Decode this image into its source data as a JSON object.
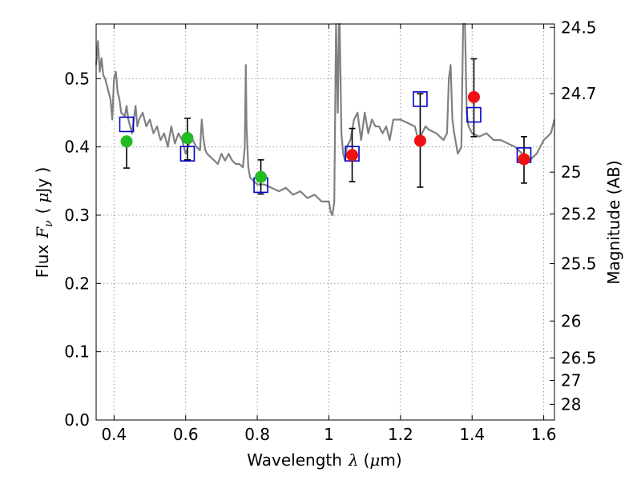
{
  "chart_data": {
    "type": "scatter",
    "xlabel": "Wavelength",
    "xlabel_symbol": "λ",
    "xlabel_unit_open": "(",
    "xlabel_unit_mu": "μ",
    "xlabel_unit_rest": "m)",
    "ylabel": "Flux",
    "ylabel_symbol": "F",
    "ylabel_sub": "ν",
    "ylabel_unit_open": "(",
    "ylabel_unit_mu": "μ",
    "ylabel_unit_rest": "Jy )",
    "y2label": "Magnitude (AB)",
    "xlim": [
      0.35,
      1.63
    ],
    "ylim": [
      0.0,
      0.58
    ],
    "grid": true,
    "x_ticks": [
      0.4,
      0.6,
      0.8,
      1.0,
      1.2,
      1.4,
      1.6
    ],
    "x_tick_labels": [
      "0.4",
      "0.6",
      "0.8",
      "1",
      "1.2",
      "1.4",
      "1.6"
    ],
    "y_ticks": [
      0.0,
      0.1,
      0.2,
      0.3,
      0.4,
      0.5
    ],
    "y_tick_labels": [
      "0.0",
      "0.1",
      "0.2",
      "0.3",
      "0.4",
      "0.5"
    ],
    "y2_ticks": [
      {
        "label": "24.5",
        "flux": 0.575
      },
      {
        "label": "24.7",
        "flux": 0.478
      },
      {
        "label": "25",
        "flux": 0.363
      },
      {
        "label": "25.2",
        "flux": 0.302
      },
      {
        "label": "25.5",
        "flux": 0.229
      },
      {
        "label": "26",
        "flux": 0.145
      },
      {
        "label": "26.5",
        "flux": 0.091
      },
      {
        "label": "27",
        "flux": 0.058
      },
      {
        "label": "28",
        "flux": 0.023
      }
    ],
    "colors": {
      "sed_line": "#808080",
      "model_box": "#0000cc",
      "green": "#22bb22",
      "red": "#ee1111",
      "errorbar": "#000000",
      "grid": "#9a9a9a"
    },
    "series": [
      {
        "kind": "sed",
        "x": [
          0.35,
          0.355,
          0.36,
          0.365,
          0.37,
          0.375,
          0.38,
          0.385,
          0.39,
          0.395,
          0.4,
          0.405,
          0.41,
          0.415,
          0.42,
          0.43,
          0.435,
          0.44,
          0.445,
          0.45,
          0.46,
          0.465,
          0.47,
          0.48,
          0.49,
          0.5,
          0.51,
          0.52,
          0.53,
          0.54,
          0.55,
          0.56,
          0.57,
          0.58,
          0.59,
          0.6,
          0.61,
          0.62,
          0.63,
          0.64,
          0.645,
          0.65,
          0.655,
          0.66,
          0.67,
          0.68,
          0.69,
          0.7,
          0.71,
          0.72,
          0.73,
          0.74,
          0.75,
          0.76,
          0.765,
          0.768,
          0.77,
          0.775,
          0.78,
          0.8,
          0.82,
          0.84,
          0.86,
          0.88,
          0.9,
          0.92,
          0.94,
          0.96,
          0.98,
          1.0,
          1.005,
          1.01,
          1.015,
          1.02,
          1.025,
          1.028,
          1.03,
          1.035,
          1.04,
          1.045,
          1.05,
          1.06,
          1.07,
          1.08,
          1.09,
          1.1,
          1.11,
          1.12,
          1.13,
          1.14,
          1.15,
          1.16,
          1.17,
          1.18,
          1.2,
          1.22,
          1.24,
          1.25,
          1.26,
          1.27,
          1.28,
          1.3,
          1.32,
          1.33,
          1.335,
          1.34,
          1.345,
          1.35,
          1.36,
          1.37,
          1.375,
          1.38,
          1.385,
          1.39,
          1.4,
          1.42,
          1.44,
          1.46,
          1.48,
          1.5,
          1.52,
          1.54,
          1.56,
          1.58,
          1.6,
          1.62,
          1.63
        ],
        "y": [
          0.52,
          0.555,
          0.51,
          0.53,
          0.505,
          0.5,
          0.49,
          0.48,
          0.47,
          0.44,
          0.5,
          0.51,
          0.48,
          0.47,
          0.45,
          0.445,
          0.46,
          0.44,
          0.43,
          0.42,
          0.46,
          0.43,
          0.44,
          0.45,
          0.43,
          0.44,
          0.42,
          0.43,
          0.41,
          0.42,
          0.4,
          0.43,
          0.405,
          0.42,
          0.41,
          0.39,
          0.405,
          0.41,
          0.4,
          0.395,
          0.44,
          0.41,
          0.395,
          0.39,
          0.385,
          0.38,
          0.375,
          0.39,
          0.38,
          0.39,
          0.38,
          0.375,
          0.375,
          0.37,
          0.4,
          0.52,
          0.43,
          0.37,
          0.355,
          0.345,
          0.345,
          0.34,
          0.335,
          0.34,
          0.33,
          0.335,
          0.325,
          0.33,
          0.32,
          0.32,
          0.305,
          0.3,
          0.32,
          0.58,
          0.45,
          0.58,
          0.58,
          0.42,
          0.39,
          0.38,
          0.4,
          0.41,
          0.44,
          0.45,
          0.41,
          0.45,
          0.42,
          0.44,
          0.43,
          0.43,
          0.42,
          0.43,
          0.41,
          0.44,
          0.44,
          0.435,
          0.43,
          0.41,
          0.42,
          0.43,
          0.425,
          0.42,
          0.41,
          0.42,
          0.5,
          0.52,
          0.44,
          0.42,
          0.39,
          0.4,
          0.58,
          0.58,
          0.45,
          0.43,
          0.42,
          0.415,
          0.42,
          0.41,
          0.41,
          0.405,
          0.4,
          0.39,
          0.38,
          0.39,
          0.41,
          0.42,
          0.44
        ]
      },
      {
        "kind": "model_boxes",
        "x": [
          0.435,
          0.605,
          0.81,
          1.065,
          1.255,
          1.405,
          1.545
        ],
        "y": [
          0.433,
          0.39,
          0.344,
          0.39,
          0.47,
          0.447,
          0.388
        ]
      },
      {
        "kind": "obs_green",
        "x": [
          0.435,
          0.605,
          0.81
        ],
        "y": [
          0.408,
          0.413,
          0.356
        ],
        "err_low": [
          0.039,
          0.032,
          0.025
        ],
        "err_high": [
          0.0,
          0.029,
          0.025
        ]
      },
      {
        "kind": "obs_red",
        "x": [
          1.065,
          1.255,
          1.405,
          1.545
        ],
        "y": [
          0.388,
          0.409,
          0.473,
          0.382
        ],
        "err_low": [
          0.039,
          0.068,
          0.058,
          0.035
        ],
        "err_high": [
          0.039,
          0.069,
          0.056,
          0.033
        ]
      }
    ]
  }
}
